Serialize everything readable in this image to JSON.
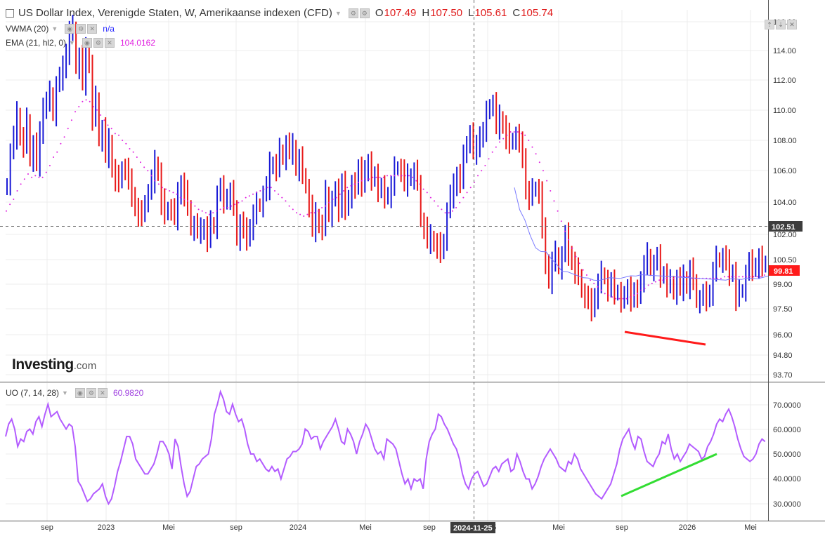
{
  "legend": {
    "main_title": "US Dollar Index, Verenigde Staten, W, Amerikaanse indexen (CFD)",
    "ohlc": [
      {
        "key": "O",
        "value": "107.49"
      },
      {
        "key": "H",
        "value": "107.50"
      },
      {
        "key": "L",
        "value": "105.61"
      },
      {
        "key": "C",
        "value": "105.74"
      }
    ],
    "vwma_label": "VWMA (20)",
    "vwma_value": "n/a",
    "ema_label": "EMA (21, hl2, 0)",
    "ema_value": "104.0162",
    "uo_label": "UO (7, 14, 28)",
    "uo_value": "60.9820"
  },
  "logo": {
    "brand": "Investing",
    "suffix": ".com"
  },
  "colors": {
    "bull": "#1a1ad6",
    "bear": "#e81818",
    "vwma": "#7b7bff",
    "ema": "#e020e0",
    "uo": "#b35cff",
    "divergence_price": "#ff1a1a",
    "divergence_uo": "#33dd33",
    "grid": "#ececec",
    "axis_text": "#333333",
    "last_price_badge": "#ff1a1a"
  },
  "chart_data": [
    {
      "type": "candlestick-bars",
      "title": "US Dollar Index, Verenigde Staten, W, Amerikaanse indexen (CFD)",
      "ylim": [
        93.0,
        116.5
      ],
      "y_ticks": [
        "116.00",
        "114.00",
        "112.00",
        "110.00",
        "108.00",
        "106.00",
        "104.00",
        "102.00",
        "100.50",
        "99.00",
        "97.50",
        "96.00",
        "94.80",
        "93.70"
      ],
      "x_ticks": [
        "sep",
        "2023",
        "Mei",
        "sep",
        "2024",
        "Mei",
        "sep",
        "2025",
        "Mei",
        "sep",
        "2026",
        "Mei"
      ],
      "crosshair_date": "2024-11-25",
      "crosshair_price": "102.51",
      "last_price": "99.81",
      "bars_close": [
        104.4,
        106.3,
        107.2,
        108.5,
        107.2,
        106.8,
        108.2,
        105.8,
        106.8,
        105.6,
        107.3,
        109.1,
        109.3,
        109.8,
        108.5,
        110.3,
        110.7,
        111.2,
        112.3,
        113.5,
        113.7,
        111.3,
        112.0,
        110.4,
        112.3,
        111.5,
        108.4,
        109.5,
        107.0,
        107.7,
        106.1,
        106.9,
        105.3,
        104.8,
        104.5,
        105.4,
        105.3,
        104.5,
        103.8,
        103.0,
        102.7,
        102.5,
        103.4,
        103.9,
        104.6,
        105.6,
        105.1,
        103.4,
        102.6,
        103.0,
        102.9,
        102.4,
        103.7,
        104.5,
        103.9,
        103.1,
        101.7,
        102.0,
        101.6,
        101.6,
        101.9,
        101.2,
        102.1,
        101.8,
        103.8,
        104.1,
        103.4,
        103.7,
        103.9,
        103.1,
        101.1,
        102.1,
        101.6,
        101.2,
        101.9,
        102.6,
        103.2,
        103.1,
        103.8,
        104.2,
        105.5,
        105.6,
        105.4,
        106.4,
        105.9,
        106.8,
        106.3,
        106.6,
        105.4,
        105.9,
        105.0,
        104.2,
        103.1,
        101.7,
        102.5,
        102.0,
        101.9,
        103.9,
        102.5,
        103.5,
        103.9,
        102.9,
        104.6,
        103.1,
        103.3,
        104.6,
        104.2,
        105.2,
        104.4,
        105.4,
        105.6,
        104.6,
        105.1,
        104.0,
        104.1,
        103.7,
        103.8,
        104.3,
        105.3,
        105.4,
        105.2,
        104.4,
        104.8,
        104.9,
        105.1,
        104.6,
        102.2,
        101.8,
        101.0,
        101.2,
        100.9,
        100.8,
        100.3,
        101.1,
        102.8,
        103.7,
        104.2,
        105.0,
        104.7,
        106.0,
        106.9,
        107.4,
        106.3,
        106.5,
        107.4,
        107.5,
        108.6,
        109.1,
        109.2,
        107.8,
        108.3,
        107.9,
        107.3,
        106.8,
        107.1,
        107.3,
        106.7,
        106.1,
        104.0,
        103.7,
        104.0,
        104.2,
        103.9,
        101.6,
        99.8,
        98.7,
        99.8,
        100.3,
        99.4,
        100.2,
        101.3,
        100.3,
        99.8,
        99.3,
        99.0,
        98.0,
        97.7,
        97.4,
        97.0,
        97.8,
        98.5,
        99.1,
        98.8,
        98.1,
        98.5,
        98.0,
        98.0,
        97.6,
        97.6,
        98.4,
        97.5,
        97.9,
        97.8,
        98.8,
        99.6,
        100.2,
        99.3,
        99.7,
        100.0,
        99.0,
        99.1,
        98.5,
        98.6,
        97.9,
        98.8,
        98.2,
        98.8,
        98.4,
        99.3,
        98.7,
        97.4,
        97.6,
        97.8,
        97.6,
        98.0,
        99.2,
        100.0,
        99.8,
        100.1,
        99.7,
        99.1,
        99.2,
        97.7,
        98.0,
        98.1,
        99.1,
        99.7,
        99.4,
        99.6,
        100.0,
        99.5,
        99.8
      ],
      "vwma": [
        103.3,
        102.0,
        101.4,
        100.5,
        99.8,
        99.6,
        99.6,
        99.2,
        98.9,
        98.5,
        98.5,
        98.4,
        98.3,
        98.2,
        98.2,
        98.1,
        98.1,
        98.2,
        98.3,
        98.3,
        98.3,
        98.4,
        98.5,
        98.5,
        98.6,
        98.6,
        98.6,
        98.6,
        98.6,
        98.6,
        98.6,
        98.6,
        98.6,
        98.6,
        98.6,
        98.6,
        98.6,
        98.6,
        98.6,
        98.6,
        98.6,
        98.7,
        98.7,
        98.7,
        98.8,
        98.8,
        98.8,
        98.9,
        99.0
      ],
      "ema": [
        102.8,
        103.2,
        103.5,
        104.0,
        104.4,
        104.7,
        105.0,
        104.8,
        104.9,
        104.8,
        104.8,
        105.1,
        105.5,
        106.0,
        106.3,
        106.8,
        107.2,
        107.7,
        108.2,
        108.7,
        109.0,
        109.3,
        109.4,
        109.3,
        109.0,
        108.8,
        108.5,
        108.2,
        107.9,
        107.7,
        107.4,
        107.3,
        107.0,
        106.8,
        106.5,
        106.3,
        106.0,
        105.7,
        105.4,
        105.2,
        104.9,
        104.6,
        104.4,
        104.2,
        104.1,
        104.0,
        103.9,
        103.8,
        103.6,
        103.5,
        103.4,
        103.3,
        103.1,
        102.9,
        102.8,
        102.7,
        102.6,
        102.7,
        102.8,
        102.9,
        103.0,
        103.0,
        103.1,
        103.2,
        103.3,
        103.4,
        103.6,
        103.7,
        103.8,
        103.9,
        104.0,
        104.1,
        104.2,
        104.2,
        104.0,
        103.8,
        103.6,
        103.4,
        103.1,
        102.9,
        102.7,
        102.6,
        102.5,
        102.6,
        102.7,
        102.7,
        102.8,
        103.0,
        103.1,
        103.3,
        103.5,
        103.6,
        103.8,
        104.0,
        104.2,
        104.3,
        104.4,
        104.5,
        104.6,
        104.7,
        104.7,
        104.8,
        104.8,
        104.8,
        104.8,
        104.9,
        104.9,
        104.9,
        104.9,
        104.9,
        104.9,
        104.9,
        104.8,
        104.6,
        104.4,
        104.1,
        103.9,
        103.6,
        103.4,
        103.1,
        102.9,
        102.7,
        102.7,
        102.8,
        103.0,
        103.3,
        103.6,
        103.9,
        104.2,
        104.5,
        104.9,
        105.2,
        105.5,
        105.9,
        106.3,
        106.6,
        106.9,
        107.1,
        107.3,
        107.5,
        107.5,
        107.5,
        107.4,
        107.3,
        107.0,
        106.6,
        106.2,
        105.7,
        105.2,
        104.6,
        104.0,
        103.4,
        102.8,
        102.2,
        101.6,
        101.1,
        100.6,
        100.1,
        99.7,
        99.3,
        99.0,
        98.7,
        98.5,
        98.3,
        98.1,
        97.9,
        97.8,
        97.7,
        97.6,
        97.6,
        97.6,
        97.6,
        97.7,
        97.8,
        97.9,
        98.1,
        98.2,
        98.4,
        98.5,
        98.6,
        98.7,
        98.7,
        98.8,
        98.8,
        98.8,
        98.9,
        98.9,
        98.9,
        98.9,
        98.8,
        98.8,
        98.8,
        98.8,
        98.8,
        98.8,
        98.8,
        98.8,
        98.8,
        98.9,
        98.9,
        98.9,
        98.9,
        98.9,
        98.9,
        98.9,
        98.9,
        98.9,
        98.9,
        98.9,
        99.0
      ],
      "divergence_line": {
        "from": [
          889,
          96.1
        ],
        "to": [
          1004,
          95.3
        ],
        "note": "x in bar-pixel space"
      }
    },
    {
      "type": "line",
      "name": "UO (7, 14, 28)",
      "ylim": [
        26,
        75
      ],
      "y_ticks": [
        "70.0000",
        "60.0000",
        "50.0000",
        "40.0000",
        "30.0000"
      ],
      "values": [
        57,
        62,
        64,
        60,
        53,
        56,
        55,
        59,
        60,
        58,
        63,
        65,
        61,
        66,
        70,
        65,
        66,
        67,
        64,
        62,
        60,
        62,
        61,
        53,
        39,
        37,
        34,
        31,
        32,
        34,
        35,
        36,
        38,
        33,
        30,
        32,
        37,
        43,
        47,
        52,
        57,
        57,
        54,
        48,
        46,
        44,
        42,
        42,
        44,
        46,
        50,
        55,
        55,
        53,
        50,
        44,
        56,
        53,
        45,
        38,
        33,
        35,
        40,
        45,
        46,
        48,
        49,
        50,
        56,
        66,
        70,
        75,
        72,
        67,
        66,
        70,
        66,
        63,
        64,
        60,
        54,
        50,
        50,
        47,
        48,
        46,
        44,
        43,
        45,
        43,
        44,
        40,
        44,
        48,
        49,
        51,
        51,
        52,
        54,
        60,
        59,
        56,
        57,
        57,
        52,
        55,
        57,
        59,
        61,
        64,
        60,
        55,
        54,
        60,
        58,
        55,
        50,
        55,
        58,
        62,
        60,
        56,
        52,
        50,
        51,
        48,
        56,
        55,
        54,
        52,
        47,
        42,
        38,
        40,
        36,
        40,
        39,
        40,
        36,
        48,
        55,
        58,
        60,
        66,
        65,
        62,
        60,
        57,
        54,
        52,
        48,
        42,
        38,
        36,
        40,
        42,
        43,
        40,
        37,
        38,
        41,
        44,
        45,
        43,
        46,
        47,
        48,
        43,
        44,
        50,
        47,
        43,
        40,
        40,
        36,
        38,
        41,
        45,
        48,
        50,
        52,
        50,
        48,
        45,
        44,
        43,
        47,
        46,
        50,
        48,
        44,
        42,
        40,
        38,
        36,
        34,
        33,
        32,
        34,
        36,
        38,
        42,
        46,
        52,
        56,
        58,
        60,
        55,
        52,
        57,
        56,
        51,
        47,
        46,
        45,
        48,
        50,
        55,
        54,
        58,
        52,
        48,
        50,
        47,
        49,
        51,
        54,
        53,
        52,
        51,
        48,
        49,
        53,
        55,
        58,
        62,
        64,
        63,
        66,
        68,
        65,
        61,
        56,
        52,
        49,
        48,
        47,
        48,
        50,
        54,
        56,
        55
      ]
    }
  ]
}
